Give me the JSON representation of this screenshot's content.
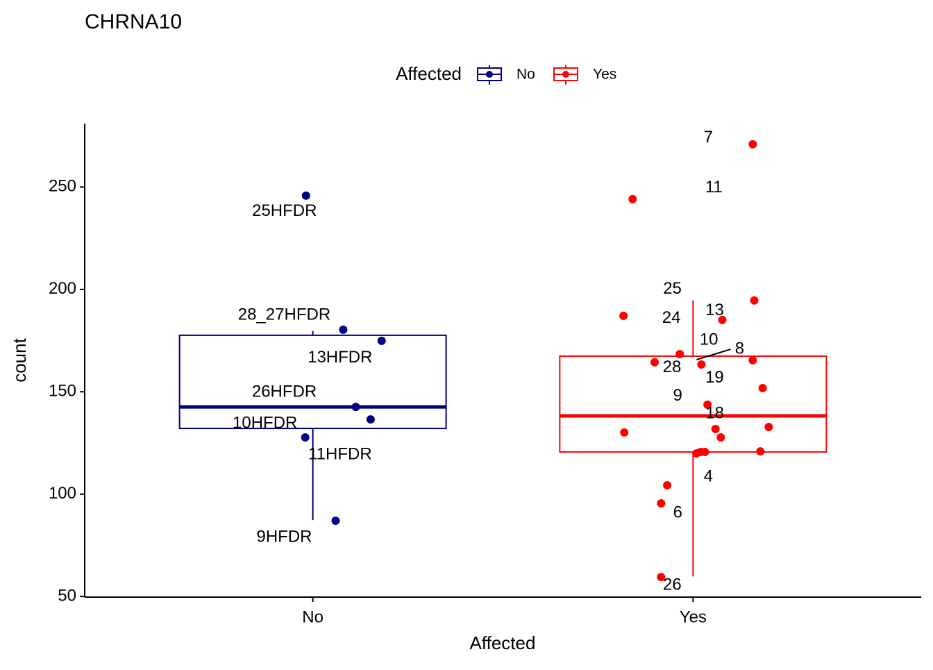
{
  "chart_data": {
    "type": "boxplot",
    "title": "CHRNA10",
    "xlabel": "Affected",
    "ylabel": "count",
    "legend_title": "Affected",
    "legend_position": "top",
    "xlim": [
      0.4,
      2.6
    ],
    "xticks": [
      {
        "value": 1,
        "label": "No"
      },
      {
        "value": 2,
        "label": "Yes"
      }
    ],
    "ylim": [
      49.7,
      281
    ],
    "yticks": [
      50,
      100,
      150,
      200,
      250
    ],
    "series": [
      {
        "name": "No",
        "color": "#000080",
        "box": {
          "lower": 87.3,
          "q1": 132.1,
          "median": 142.6,
          "q3": 177.6,
          "upper": 179.6
        },
        "x": [
          0.982,
          1.08,
          1.181,
          1.113,
          1.152,
          0.98,
          1.06
        ],
        "values": [
          245.8,
          180.3,
          174.9,
          142.6,
          136.5,
          127.7,
          87.0
        ],
        "labels": [
          "25HFDR",
          "28_27HFDR",
          "13HFDR",
          "26HFDR",
          "11HFDR",
          "10HFDR",
          "9HFDR"
        ]
      },
      {
        "name": "Yes",
        "color": "#ff0000",
        "box": {
          "lower": 59.8,
          "q1": 120.6,
          "median": 138.2,
          "q3": 167.4,
          "upper": 194.6
        },
        "x": [
          2.157,
          1.841,
          2.161,
          1.817,
          2.077,
          1.965,
          2.157,
          1.899,
          2.022,
          2.183,
          2.038,
          2.199,
          2.059,
          1.819,
          2.073,
          2.177,
          2.009,
          2.02,
          2.031,
          1.932,
          1.916,
          1.916
        ],
        "values": [
          270.9,
          244.1,
          194.6,
          187.1,
          185.1,
          168.4,
          165.4,
          164.4,
          163.3,
          151.8,
          143.7,
          132.8,
          131.8,
          130.1,
          127.7,
          120.9,
          119.9,
          120.6,
          120.6,
          104.3,
          95.5,
          59.5
        ],
        "labels": [
          "7",
          "11",
          "25",
          "24",
          "13",
          "10",
          "19",
          "28",
          "8",
          null,
          "9",
          null,
          "18",
          null,
          null,
          null,
          "4",
          null,
          null,
          null,
          "6",
          "26"
        ]
      }
    ]
  }
}
